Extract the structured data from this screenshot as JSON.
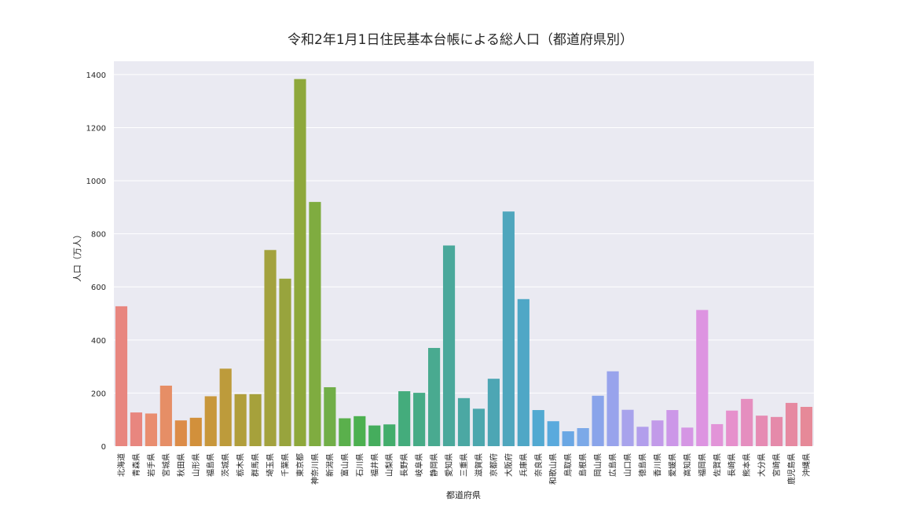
{
  "chart_data": {
    "type": "bar",
    "title": "令和2年1月1日住民基本台帳による総人口（都道府県別）",
    "xlabel": "都道府県",
    "ylabel": "人口（万人）",
    "ylim": [
      0,
      1450
    ],
    "yticks": [
      0,
      200,
      400,
      600,
      800,
      1000,
      1200,
      1400
    ],
    "grid": true,
    "categories": [
      "北海道",
      "青森県",
      "岩手県",
      "宮城県",
      "秋田県",
      "山形県",
      "福島県",
      "茨城県",
      "栃木県",
      "群馬県",
      "埼玉県",
      "千葉県",
      "東京都",
      "神奈川県",
      "新潟県",
      "富山県",
      "石川県",
      "福井県",
      "山梨県",
      "長野県",
      "岐阜県",
      "静岡県",
      "愛知県",
      "三重県",
      "滋賀県",
      "京都府",
      "大阪府",
      "兵庫県",
      "奈良県",
      "和歌山県",
      "鳥取県",
      "島根県",
      "岡山県",
      "広島県",
      "山口県",
      "徳島県",
      "香川県",
      "愛媛県",
      "高知県",
      "福岡県",
      "佐賀県",
      "長崎県",
      "熊本県",
      "大分県",
      "宮崎県",
      "鹿児島県",
      "沖縄県"
    ],
    "values": [
      527,
      127,
      123,
      228,
      97,
      107,
      188,
      292,
      196,
      196,
      739,
      631,
      1383,
      920,
      222,
      105,
      113,
      78,
      82,
      207,
      201,
      370,
      756,
      181,
      141,
      254,
      884,
      554,
      136,
      94,
      56,
      68,
      190,
      282,
      137,
      73,
      97,
      136,
      70,
      513,
      83,
      134,
      178,
      115,
      110,
      163,
      148
    ],
    "colors": [
      "#e8867f",
      "#e8867f",
      "#e98d6f",
      "#e68e66",
      "#dc8c48",
      "#d2903b",
      "#c8973b",
      "#bd9b3b",
      "#b19e3b",
      "#a6a13b",
      "#a3a23e",
      "#98a43d",
      "#8ea83b",
      "#7fac40",
      "#71ae48",
      "#5ab04c",
      "#4cb050",
      "#45ad5d",
      "#43ad6c",
      "#44ac7c",
      "#46ab86",
      "#49aa90",
      "#4aa89b",
      "#4ba8a3",
      "#4ca7ad",
      "#4da6b4",
      "#4fa6bd",
      "#4fa7c6",
      "#52a9d1",
      "#5aaadd",
      "#6aa7e4",
      "#7ca9e8",
      "#89a4ea",
      "#98a3ec",
      "#a8a3ec",
      "#b29eec",
      "#c29ae9",
      "#cc97e8",
      "#d596e4",
      "#dd94e1",
      "#e294d8",
      "#e690cc",
      "#e58ebf",
      "#e68bb3",
      "#e58aaa",
      "#e689a1",
      "#e68998"
    ]
  }
}
